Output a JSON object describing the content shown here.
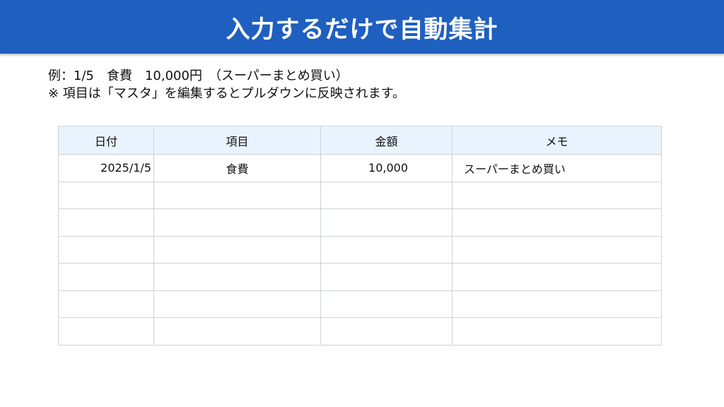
{
  "title": "入力するだけで自動集計",
  "notes": [
    "例：1/5　食費　10,000円　（スーパーまとめ買い）",
    "※ 項目は「マスタ」を編集するとプルダウンに反映されます。"
  ],
  "colors": {
    "banner": "#1f5fc0",
    "header_bg": "#e8f3fe"
  },
  "table": {
    "headers": [
      "日付",
      "項目",
      "金額",
      "メモ"
    ],
    "rows": [
      [
        "2025/1/5",
        "食費",
        "10,000",
        "スーパーまとめ買い"
      ],
      [
        "",
        "",
        "",
        ""
      ],
      [
        "",
        "",
        "",
        ""
      ],
      [
        "",
        "",
        "",
        ""
      ],
      [
        "",
        "",
        "",
        ""
      ],
      [
        "",
        "",
        "",
        ""
      ],
      [
        "",
        "",
        "",
        ""
      ]
    ]
  }
}
